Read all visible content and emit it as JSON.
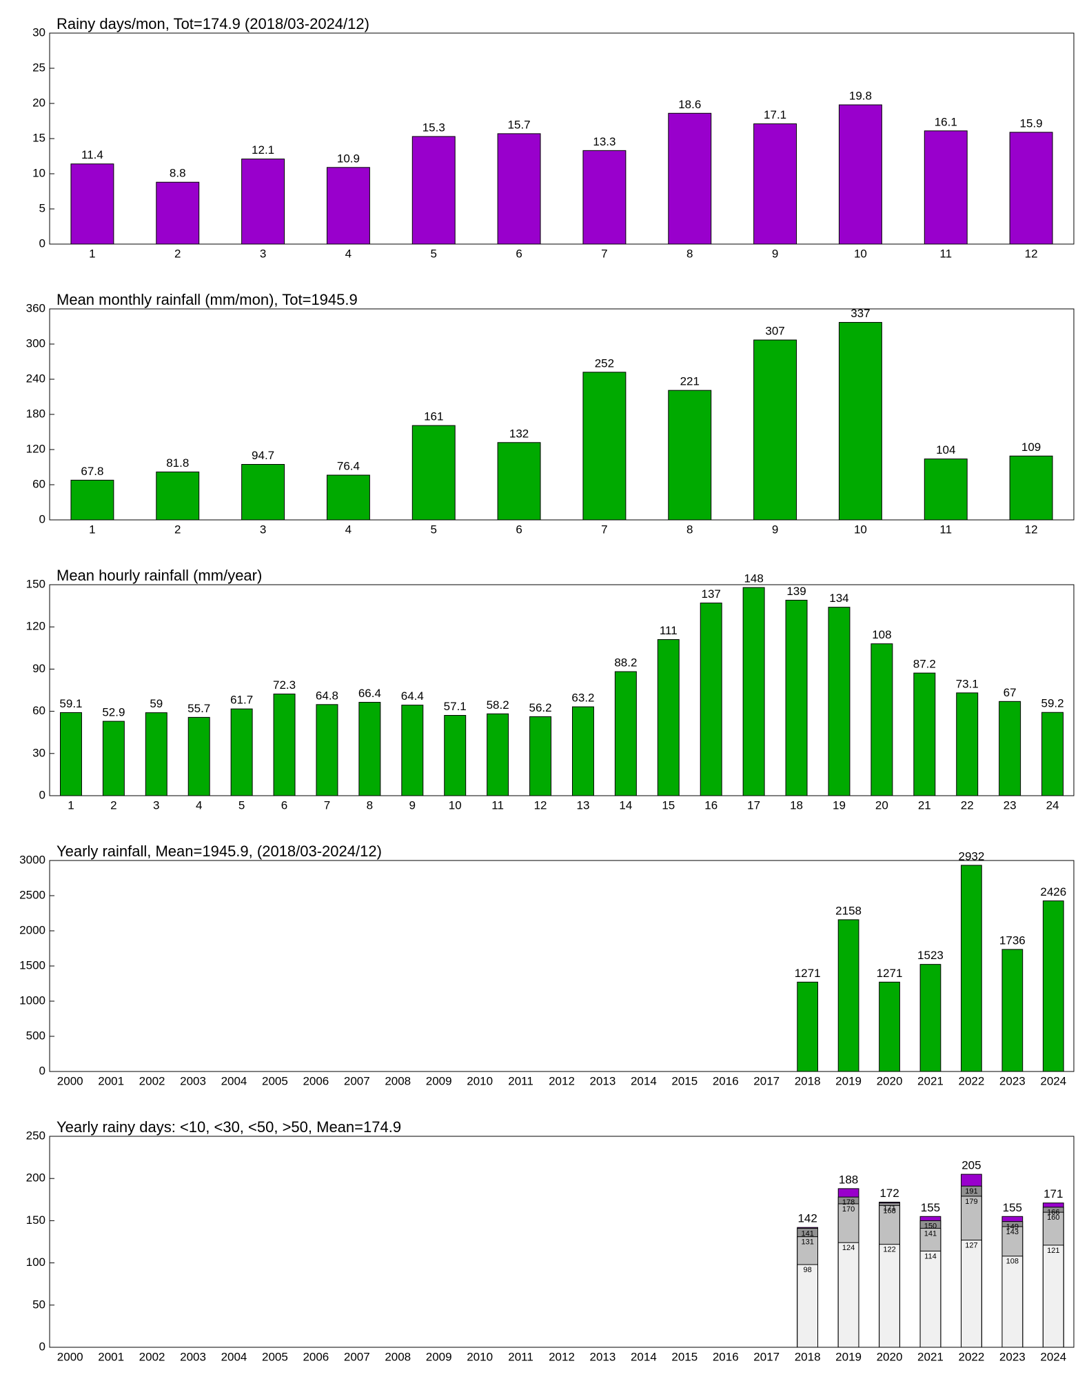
{
  "chart_data": [
    {
      "type": "bar",
      "title": "Rainy days/mon, Tot=174.9 (2018/03-2024/12)",
      "categories": [
        "1",
        "2",
        "3",
        "4",
        "5",
        "6",
        "7",
        "8",
        "9",
        "10",
        "11",
        "12"
      ],
      "values": [
        11.4,
        8.8,
        12.1,
        10.9,
        15.3,
        15.7,
        13.3,
        18.6,
        17.1,
        19.8,
        16.1,
        15.9
      ],
      "color": "#9900cc",
      "ylim": [
        0,
        30
      ],
      "yticks": [
        0,
        5,
        10,
        15,
        20,
        25,
        30
      ]
    },
    {
      "type": "bar",
      "title": "Mean monthly rainfall (mm/mon), Tot=1945.9",
      "categories": [
        "1",
        "2",
        "3",
        "4",
        "5",
        "6",
        "7",
        "8",
        "9",
        "10",
        "11",
        "12"
      ],
      "values": [
        67.8,
        81.8,
        94.7,
        76.4,
        161,
        132,
        252,
        221,
        307,
        337,
        104,
        109
      ],
      "color": "#00aa00",
      "ylim": [
        0,
        360
      ],
      "yticks": [
        0,
        60,
        120,
        180,
        240,
        300,
        360
      ]
    },
    {
      "type": "bar",
      "title": "Mean hourly rainfall (mm/year)",
      "categories": [
        "1",
        "2",
        "3",
        "4",
        "5",
        "6",
        "7",
        "8",
        "9",
        "10",
        "11",
        "12",
        "13",
        "14",
        "15",
        "16",
        "17",
        "18",
        "19",
        "20",
        "21",
        "22",
        "23",
        "24"
      ],
      "values": [
        59.1,
        52.9,
        59,
        55.7,
        61.7,
        72.3,
        64.8,
        66.4,
        64.4,
        57.1,
        58.2,
        56.2,
        63.2,
        88.2,
        111,
        137,
        148,
        139,
        134,
        108,
        87.2,
        73.1,
        67,
        59.2
      ],
      "color": "#00aa00",
      "ylim": [
        0,
        150
      ],
      "yticks": [
        0,
        30,
        60,
        90,
        120,
        150
      ]
    },
    {
      "type": "bar",
      "title": "Yearly rainfall, Mean=1945.9, (2018/03-2024/12)",
      "categories": [
        "2000",
        "2001",
        "2002",
        "2003",
        "2004",
        "2005",
        "2006",
        "2007",
        "2008",
        "2009",
        "2010",
        "2011",
        "2012",
        "2013",
        "2014",
        "2015",
        "2016",
        "2017",
        "2018",
        "2019",
        "2020",
        "2021",
        "2022",
        "2023",
        "2024"
      ],
      "values": [
        null,
        null,
        null,
        null,
        null,
        null,
        null,
        null,
        null,
        null,
        null,
        null,
        null,
        null,
        null,
        null,
        null,
        null,
        1271,
        2158,
        1271,
        1523,
        2932,
        1736,
        2426
      ],
      "color": "#00aa00",
      "ylim": [
        0,
        3000
      ],
      "yticks": [
        0,
        500,
        1000,
        1500,
        2000,
        2500,
        3000
      ]
    },
    {
      "type": "bar",
      "title": "Yearly rainy days: <10, <30, <50, >50, Mean=174.9",
      "categories": [
        "2000",
        "2001",
        "2002",
        "2003",
        "2004",
        "2005",
        "2006",
        "2007",
        "2008",
        "2009",
        "2010",
        "2011",
        "2012",
        "2013",
        "2014",
        "2015",
        "2016",
        "2017",
        "2018",
        "2019",
        "2020",
        "2021",
        "2022",
        "2023",
        "2024"
      ],
      "series": [
        {
          "color": "#f0f0f0",
          "values": [
            null,
            null,
            null,
            null,
            null,
            null,
            null,
            null,
            null,
            null,
            null,
            null,
            null,
            null,
            null,
            null,
            null,
            null,
            98,
            124,
            122,
            114,
            127,
            108,
            121
          ]
        },
        {
          "color": "#c0c0c0",
          "values": [
            null,
            null,
            null,
            null,
            null,
            null,
            null,
            null,
            null,
            null,
            null,
            null,
            null,
            null,
            null,
            null,
            null,
            null,
            131,
            170,
            168,
            141,
            179,
            143,
            160
          ]
        },
        {
          "color": "#909090",
          "values": [
            null,
            null,
            null,
            null,
            null,
            null,
            null,
            null,
            null,
            null,
            null,
            null,
            null,
            null,
            null,
            null,
            null,
            null,
            141,
            178,
            171,
            150,
            191,
            149,
            166
          ]
        },
        {
          "color": "#9900cc",
          "values": [
            null,
            null,
            null,
            null,
            null,
            null,
            null,
            null,
            null,
            null,
            null,
            null,
            null,
            null,
            null,
            null,
            null,
            null,
            142,
            188,
            172,
            155,
            205,
            155,
            171
          ]
        }
      ],
      "ylim": [
        0,
        250
      ],
      "yticks": [
        0,
        50,
        100,
        150,
        200,
        250
      ]
    }
  ]
}
